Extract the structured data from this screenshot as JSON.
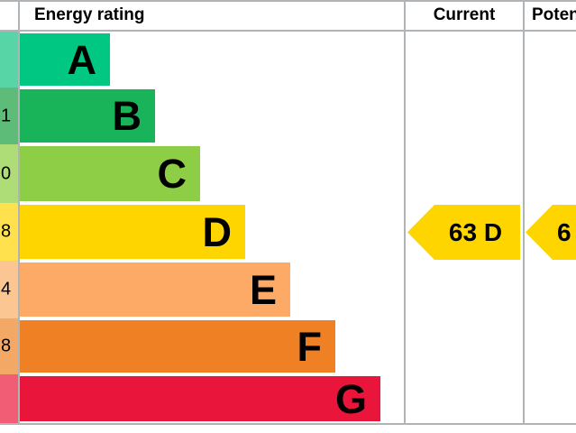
{
  "columns": {
    "score": {
      "header_visible": "e"
    },
    "rating": {
      "header": "Energy rating"
    },
    "current": {
      "header": "Current"
    },
    "potential": {
      "header": "Potential"
    }
  },
  "bands": [
    {
      "letter": "A",
      "score_visible": "",
      "bar_color": "#00c781",
      "strip_color": "#58d5a6"
    },
    {
      "letter": "B",
      "score_visible": "1",
      "bar_color": "#19b459",
      "strip_color": "#5dbd78"
    },
    {
      "letter": "C",
      "score_visible": "0",
      "bar_color": "#8dce46",
      "strip_color": "#aedc76"
    },
    {
      "letter": "D",
      "score_visible": "8",
      "bar_color": "#ffd500",
      "strip_color": "#ffe04d"
    },
    {
      "letter": "E",
      "score_visible": "4",
      "bar_color": "#fcaa65",
      "strip_color": "#fbc692"
    },
    {
      "letter": "F",
      "score_visible": "8",
      "bar_color": "#ef8023",
      "strip_color": "#f3a865"
    },
    {
      "letter": "G",
      "score_visible": "",
      "bar_color": "#e9153b",
      "strip_color": "#f05d74"
    }
  ],
  "arrows": {
    "current": {
      "label": "63 D",
      "color": "#ffd500",
      "band_row": "D"
    },
    "potential": {
      "label_visible": "6",
      "color": "#ffd500",
      "band_row": "D"
    }
  },
  "colors": {
    "grid": "#b1b4b6",
    "background": "#ffffff",
    "text": "#000000"
  },
  "chart_data": {
    "type": "bar",
    "title": "Energy rating",
    "categories": [
      "A",
      "B",
      "C",
      "D",
      "E",
      "F",
      "G"
    ],
    "series": [
      {
        "name": "band-bar-relative-length",
        "values": [
          1,
          2,
          3,
          4,
          5,
          6,
          7
        ]
      }
    ],
    "band_colors": [
      "#00c781",
      "#19b459",
      "#8dce46",
      "#ffd500",
      "#fcaa65",
      "#ef8023",
      "#e9153b"
    ],
    "columns_visible": [
      "e",
      "Energy rating",
      "Current",
      "Pote"
    ],
    "score_fragments_visible": [
      "",
      "1",
      "0",
      "8",
      "4",
      "8",
      ""
    ],
    "current_rating": {
      "score": "63",
      "band": "D"
    },
    "potential_rating_visible": "6",
    "legend_position": "none",
    "grid": "off",
    "notes": "EPC-style energy rating chart, cropped at left and right edges"
  }
}
